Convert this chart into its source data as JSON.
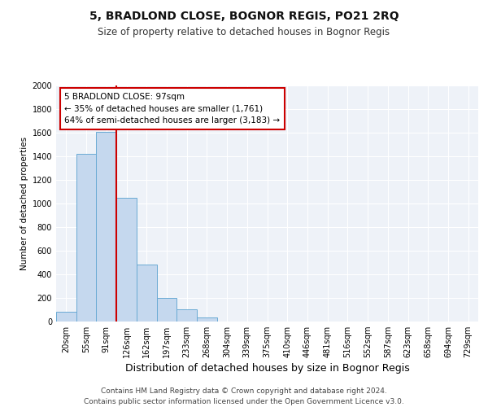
{
  "title": "5, BRADLOND CLOSE, BOGNOR REGIS, PO21 2RQ",
  "subtitle": "Size of property relative to detached houses in Bognor Regis",
  "xlabel": "Distribution of detached houses by size in Bognor Regis",
  "ylabel": "Number of detached properties",
  "bar_labels": [
    "20sqm",
    "55sqm",
    "91sqm",
    "126sqm",
    "162sqm",
    "197sqm",
    "233sqm",
    "268sqm",
    "304sqm",
    "339sqm",
    "375sqm",
    "410sqm",
    "446sqm",
    "481sqm",
    "516sqm",
    "552sqm",
    "587sqm",
    "623sqm",
    "658sqm",
    "694sqm",
    "729sqm"
  ],
  "bar_values": [
    80,
    1420,
    1610,
    1050,
    480,
    200,
    105,
    35,
    0,
    0,
    0,
    0,
    0,
    0,
    0,
    0,
    0,
    0,
    0,
    0,
    0
  ],
  "bar_color": "#c5d8ee",
  "bar_edgecolor": "#6aaad4",
  "vline_index": 2,
  "annotation_text": "5 BRADLOND CLOSE: 97sqm\n← 35% of detached houses are smaller (1,761)\n64% of semi-detached houses are larger (3,183) →",
  "annotation_box_facecolor": "#ffffff",
  "annotation_box_edgecolor": "#cc0000",
  "vline_color": "#cc0000",
  "ylim": [
    0,
    2000
  ],
  "yticks": [
    0,
    200,
    400,
    600,
    800,
    1000,
    1200,
    1400,
    1600,
    1800,
    2000
  ],
  "footer_line1": "Contains HM Land Registry data © Crown copyright and database right 2024.",
  "footer_line2": "Contains public sector information licensed under the Open Government Licence v3.0.",
  "plot_bg_color": "#eef2f8",
  "grid_color": "#ffffff",
  "title_fontsize": 10,
  "subtitle_fontsize": 8.5,
  "xlabel_fontsize": 9,
  "ylabel_fontsize": 7.5,
  "tick_fontsize": 7,
  "footer_fontsize": 6.5,
  "annot_fontsize": 7.5
}
